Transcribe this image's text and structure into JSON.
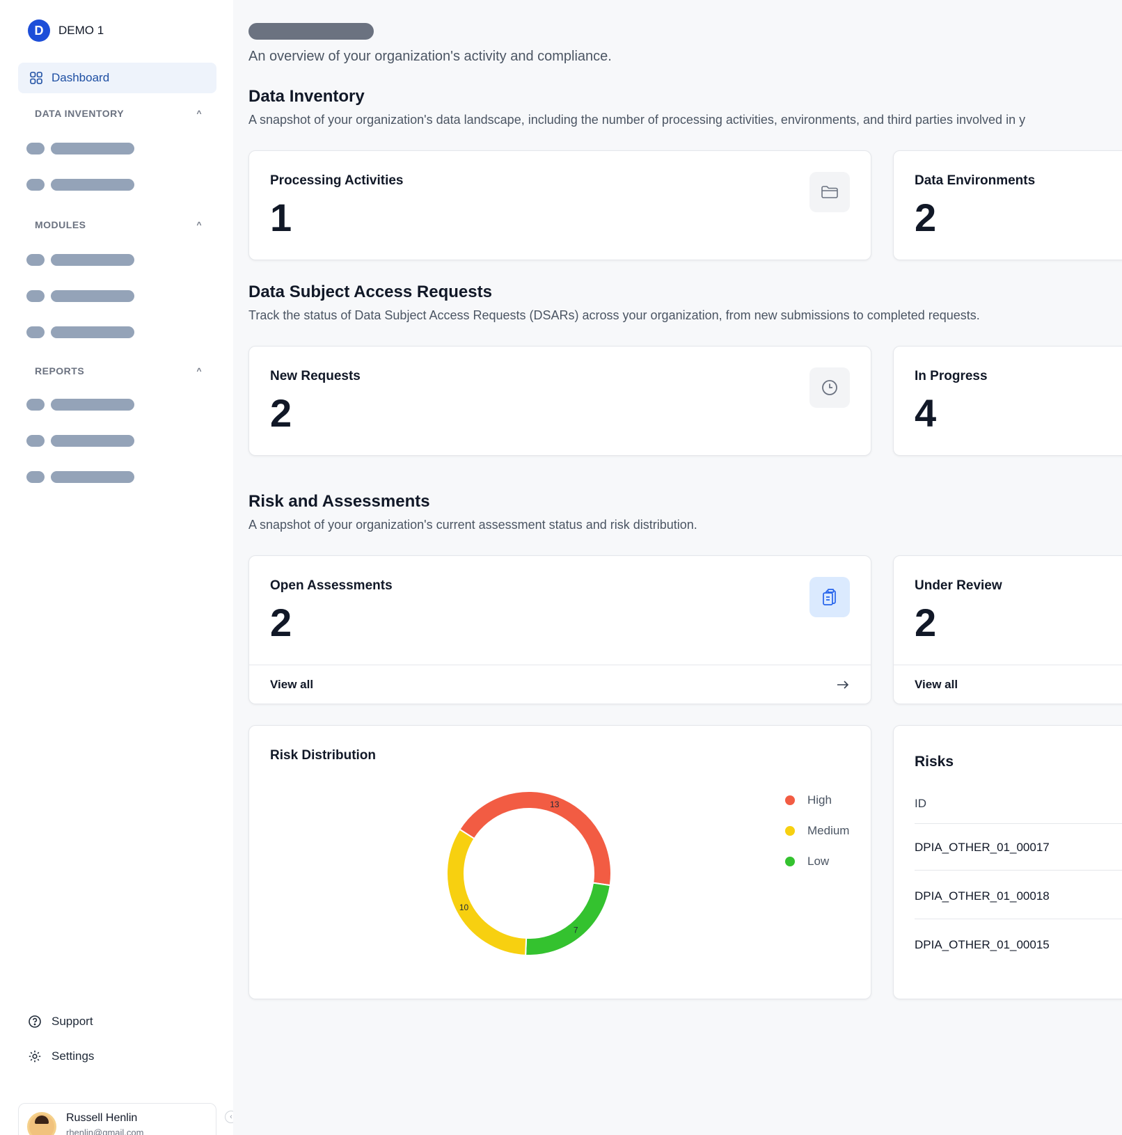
{
  "app": {
    "logo_letter": "D",
    "name": "DEMO 1"
  },
  "sidebar": {
    "dashboard_label": "Dashboard",
    "sections": [
      {
        "label": "DATA INVENTORY",
        "chevron": "^"
      },
      {
        "label": "MODULES",
        "chevron": "^"
      },
      {
        "label": "REPORTS",
        "chevron": "^"
      }
    ],
    "support_label": "Support",
    "settings_label": "Settings",
    "user": {
      "name": "Russell Henlin",
      "email": "rhenlin@gmail.com"
    }
  },
  "header": {
    "subtitle": "An overview of your organization's activity and compliance."
  },
  "data_inventory": {
    "title": "Data Inventory",
    "description": "A snapshot of your organization's data landscape, including the number of processing activities, environments, and third parties involved in y",
    "cards": [
      {
        "label": "Processing Activities",
        "value": "1",
        "icon": "folder-icon"
      },
      {
        "label": "Data Environments",
        "value": "2"
      }
    ]
  },
  "dsar": {
    "title": "Data Subject Access Requests",
    "description": "Track the status of Data Subject Access Requests (DSARs) across your organization, from new submissions to completed requests.",
    "cards": [
      {
        "label": "New Requests",
        "value": "2",
        "icon": "clock-icon"
      },
      {
        "label": "In Progress",
        "value": "4"
      }
    ]
  },
  "risk": {
    "title": "Risk and Assessments",
    "description": "A snapshot of your organization's current assessment status and risk distribution.",
    "cards": [
      {
        "label": "Open Assessments",
        "value": "2",
        "icon": "clipboard-icon",
        "footer": "View all"
      },
      {
        "label": "Under Review",
        "value": "2",
        "footer": "View all"
      }
    ],
    "distribution_title": "Risk Distribution",
    "risks_title": "Risks",
    "risks_column": "ID",
    "risks_rows": [
      "DPIA_OTHER_01_00017",
      "DPIA_OTHER_01_00018",
      "DPIA_OTHER_01_00015"
    ]
  },
  "chart_data": {
    "type": "pie",
    "title": "Risk Distribution",
    "categories": [
      "High",
      "Medium",
      "Low"
    ],
    "values": [
      13,
      10,
      7
    ],
    "colors": [
      "#f25c43",
      "#f7d010",
      "#34c22f"
    ],
    "donut": true,
    "legend": "right"
  }
}
